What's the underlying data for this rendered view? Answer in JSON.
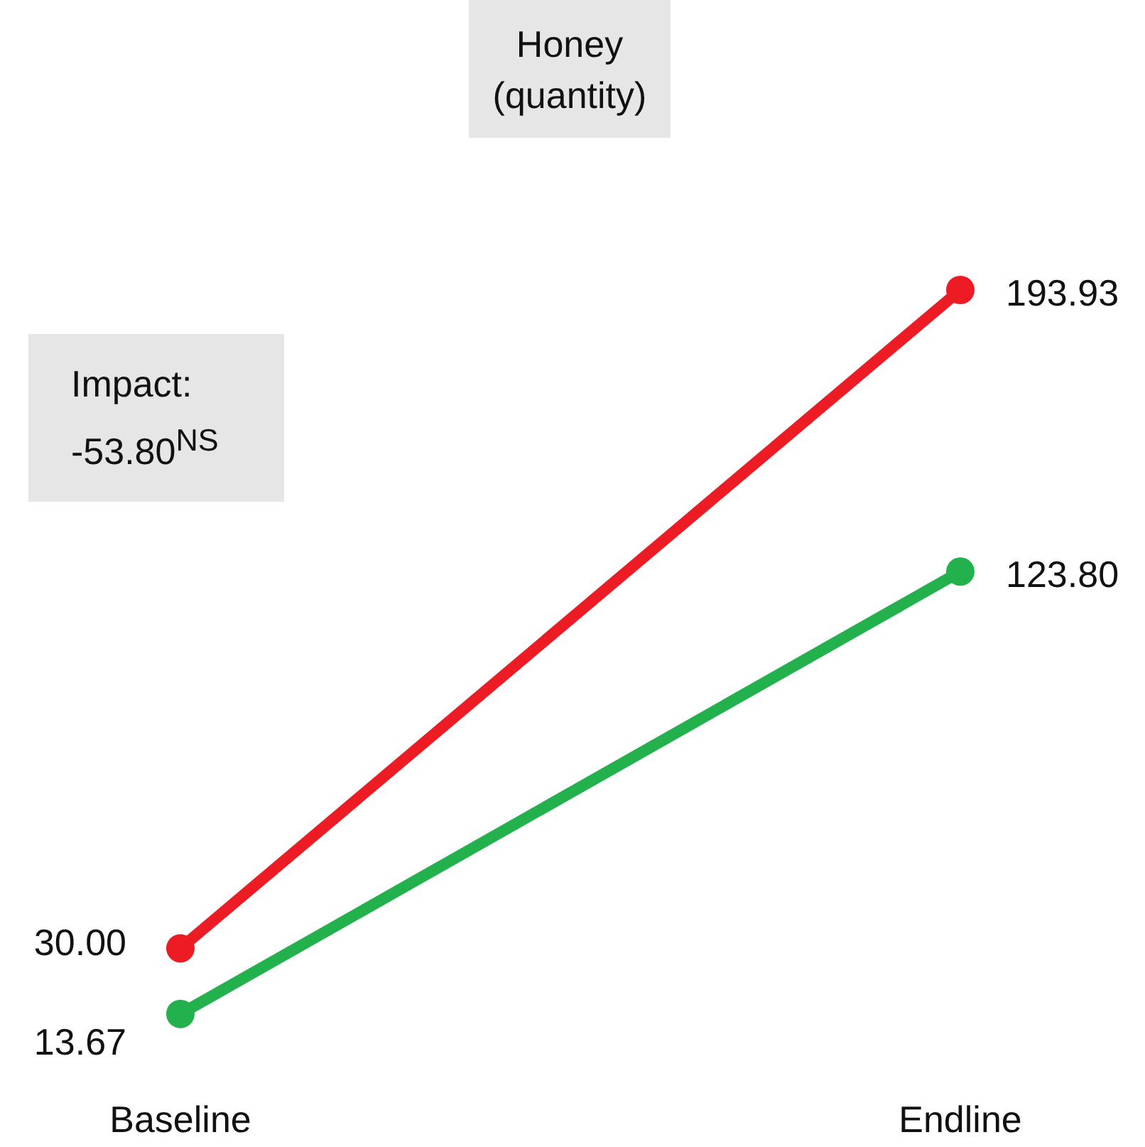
{
  "chart_data": {
    "type": "line",
    "title": "Honey (quantity)",
    "categories": [
      "Baseline",
      "Endline"
    ],
    "series": [
      {
        "color": "#ed1c24",
        "values": [
          30.0,
          193.93
        ],
        "value_labels": [
          "30.00",
          "193.93"
        ]
      },
      {
        "color": "#22b14c",
        "values": [
          13.67,
          123.8
        ],
        "value_labels": [
          "13.67",
          "123.80"
        ]
      }
    ],
    "marker": "circle",
    "line_style": "solid",
    "annotations": [
      "Impact: -53.80$^{NS}$"
    ]
  }
}
